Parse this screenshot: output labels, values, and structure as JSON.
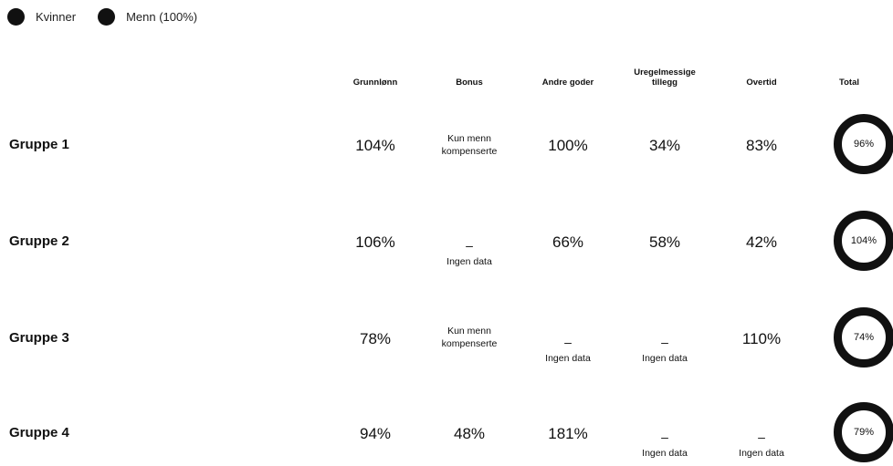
{
  "legend": {
    "women_label": "Kvinner",
    "men_label": "Menn (100%)",
    "color": "#111111"
  },
  "columns": {
    "grunnlonn": "Grunnlønn",
    "bonus": "Bonus",
    "andre_goder": "Andre goder",
    "uregelmessige": "Uregelmessige\ntillegg",
    "overtid": "Overtid",
    "total": "Total"
  },
  "common": {
    "dash": "–",
    "no_data": "Ingen data",
    "only_men": "Kun menn\nkompenserte"
  },
  "groups": [
    {
      "name": "Gruppe 1",
      "grunnlonn": "104%",
      "andre_goder": "100%",
      "uregelmessige": "34%",
      "overtid": "83%",
      "total": "96%"
    },
    {
      "name": "Gruppe 2",
      "grunnlonn": "106%",
      "andre_goder": "66%",
      "uregelmessige": "58%",
      "overtid": "42%",
      "total": "104%"
    },
    {
      "name": "Gruppe 3",
      "grunnlonn": "78%",
      "overtid": "110%",
      "total": "74%"
    },
    {
      "name": "Gruppe 4",
      "grunnlonn": "94%",
      "bonus": "48%",
      "andre_goder": "181%",
      "total": "79%"
    }
  ]
}
